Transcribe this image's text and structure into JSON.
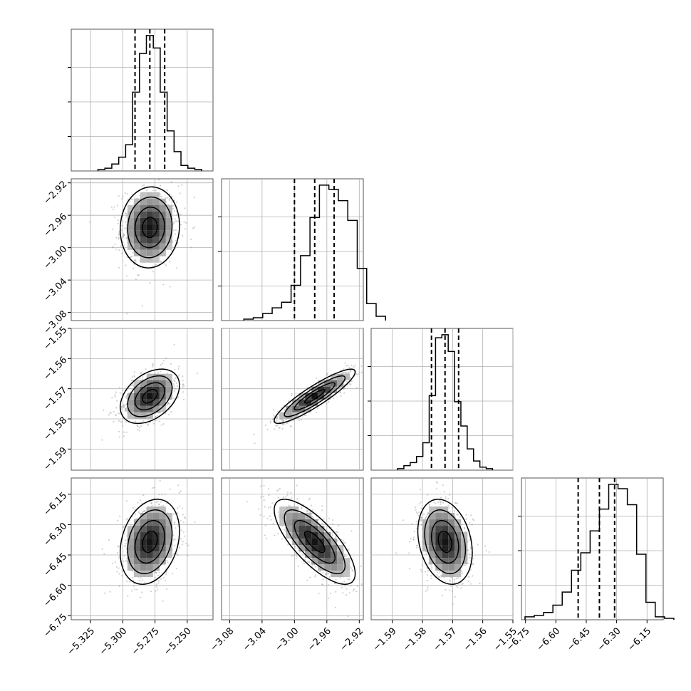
{
  "chart_data": {
    "type": "corner",
    "colors": {
      "line": "#000000",
      "grid": "#b0b0b0",
      "scatter": "#9a9a9a",
      "density": "#000000"
    },
    "params": [
      {
        "range": [
          -5.34,
          -5.23
        ],
        "ticks": [
          -5.325,
          -5.3,
          -5.275,
          -5.25
        ],
        "tick_labels": [
          "−5.325",
          "−5.300",
          "−5.275",
          "−5.250"
        ],
        "mean": -5.279,
        "sd": 0.0115,
        "quantiles": [
          -5.2905,
          -5.279,
          -5.2675
        ],
        "hist_weights": [
          0.01,
          0.02,
          0.05,
          0.1,
          0.19,
          0.57,
          0.85,
          0.98,
          0.89,
          0.57,
          0.29,
          0.14,
          0.04,
          0.02,
          0.01
        ]
      },
      {
        "range": [
          -3.09,
          -2.915
        ],
        "ticks": [
          -3.08,
          -3.04,
          -3.0,
          -2.96,
          -2.92
        ],
        "tick_labels": [
          "−3.08",
          "−3.04",
          "−3.00",
          "−2.96",
          "−2.92"
        ],
        "mean": -2.975,
        "sd": 0.025,
        "quantiles": [
          -3.0,
          -2.975,
          -2.951
        ],
        "hist_weights": [
          0.01,
          0.02,
          0.05,
          0.09,
          0.13,
          0.25,
          0.46,
          0.73,
          0.96,
          0.93,
          0.85,
          0.71,
          0.37,
          0.12,
          0.03
        ]
      },
      {
        "range": [
          -1.597,
          -1.55
        ],
        "ticks": [
          -1.59,
          -1.58,
          -1.57,
          -1.56,
          -1.55
        ],
        "tick_labels": [
          "−1.59",
          "−1.58",
          "−1.57",
          "−1.56",
          "−1.55"
        ],
        "mean": -1.5725,
        "sd": 0.0045,
        "quantiles": [
          -1.577,
          -1.5725,
          -1.568
        ],
        "hist_weights": [
          0.01,
          0.03,
          0.05,
          0.09,
          0.18,
          0.49,
          0.87,
          0.89,
          0.78,
          0.45,
          0.29,
          0.14,
          0.06,
          0.02,
          0.01
        ]
      },
      {
        "range": [
          -6.77,
          -6.07
        ],
        "ticks": [
          -6.75,
          -6.6,
          -6.45,
          -6.3,
          -6.15
        ],
        "tick_labels": [
          "−6.75",
          "−6.60",
          "−6.45",
          "−6.30",
          "−6.15"
        ],
        "mean": -6.385,
        "sd": 0.105,
        "quantiles": [
          -6.49,
          -6.385,
          -6.31
        ],
        "hist_weights": [
          0.02,
          0.03,
          0.05,
          0.1,
          0.19,
          0.34,
          0.46,
          0.61,
          0.76,
          0.93,
          0.9,
          0.79,
          0.45,
          0.12,
          0.02,
          0.01
        ]
      }
    ],
    "correlations": [
      {
        "row": 1,
        "col": 0,
        "rho": 0.05
      },
      {
        "row": 2,
        "col": 0,
        "rho": 0.4
      },
      {
        "row": 2,
        "col": 1,
        "rho": 0.9
      },
      {
        "row": 3,
        "col": 0,
        "rho": 0.25
      },
      {
        "row": 3,
        "col": 1,
        "rho": -0.75
      },
      {
        "row": 3,
        "col": 2,
        "rho": -0.25
      }
    ]
  }
}
